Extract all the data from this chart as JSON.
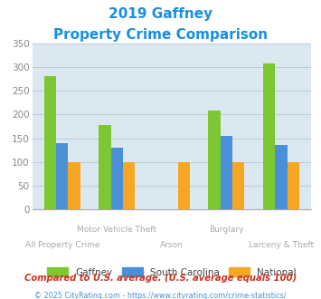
{
  "title_line1": "2019 Gaffney",
  "title_line2": "Property Crime Comparison",
  "title_color": "#1a8fe0",
  "categories": [
    "All Property Crime",
    "Motor Vehicle Theft",
    "Arson",
    "Burglary",
    "Larceny & Theft"
  ],
  "series": {
    "Gaffney": [
      280,
      178,
      null,
      208,
      308
    ],
    "South Carolina": [
      140,
      130,
      null,
      155,
      135
    ],
    "National": [
      100,
      100,
      100,
      100,
      100
    ]
  },
  "colors": {
    "Gaffney": "#7dc832",
    "South Carolina": "#4a90d9",
    "National": "#f5a623"
  },
  "ylim": [
    0,
    350
  ],
  "yticks": [
    0,
    50,
    100,
    150,
    200,
    250,
    300,
    350
  ],
  "plot_bg": "#dce8f0",
  "grid_color": "#b8cdd8",
  "footer_note": "Compared to U.S. average. (U.S. average equals 100)",
  "footer_credit": "© 2025 CityRating.com - https://www.cityrating.com/crime-statistics/",
  "footer_note_color": "#cc3322",
  "footer_credit_color": "#4a90d9",
  "xlabel_color": "#aaaaaa",
  "bar_width": 0.22
}
